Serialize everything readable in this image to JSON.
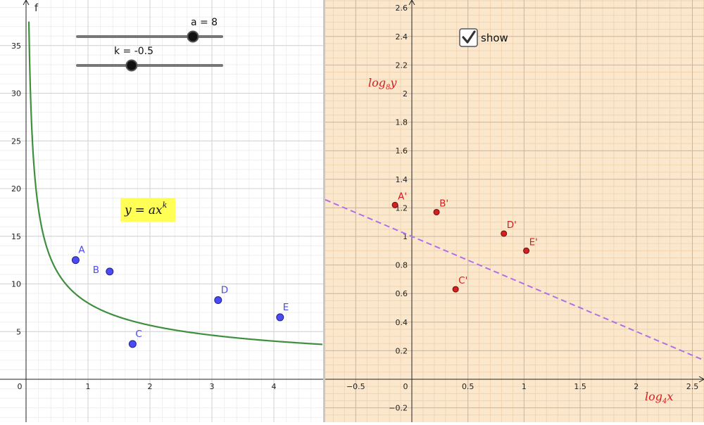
{
  "left_view": {
    "function_label": "f",
    "equation_text": "y = ax^k",
    "equation_parts": {
      "y": "y",
      "eq": "=",
      "a": "a",
      "x": "x",
      "k": "k"
    },
    "sliders": [
      {
        "label": "a = 8",
        "value": 8,
        "min": 0,
        "max": 10
      },
      {
        "label": "k = -0.5",
        "value": -0.5,
        "min": -2,
        "max": 2
      }
    ],
    "curve": {
      "a": 8,
      "k": -0.5
    },
    "x_ticks": [
      "0",
      "1",
      "2",
      "3",
      "4"
    ],
    "y_ticks": [
      "5",
      "10",
      "15",
      "20",
      "25",
      "30",
      "35"
    ],
    "points": [
      {
        "name": "A",
        "x": 0.8,
        "y": 12.5
      },
      {
        "name": "B",
        "x": 1.35,
        "y": 11.3
      },
      {
        "name": "C",
        "x": 1.72,
        "y": 3.7
      },
      {
        "name": "D",
        "x": 3.1,
        "y": 8.3
      },
      {
        "name": "E",
        "x": 4.1,
        "y": 6.5
      }
    ],
    "colors": {
      "curve": "#3f8f3f",
      "point_fill": "#4b4bf5",
      "point_label": "#4b4bf5",
      "highlight": "#ffff55"
    }
  },
  "right_view": {
    "checkbox": {
      "label": "show",
      "checked": true
    },
    "x_axis_label": {
      "base": "log",
      "sub": "4",
      "var": "x"
    },
    "y_axis_label": {
      "base": "log",
      "sub": "8",
      "var": "y"
    },
    "x_ticks": [
      "−0.5",
      "0",
      "0.5",
      "1",
      "1.5",
      "2",
      "2.5"
    ],
    "y_ticks": [
      "−0.2",
      "0.2",
      "0.4",
      "0.6",
      "0.8",
      "1",
      "1.2",
      "1.4",
      "1.6",
      "1.8",
      "2",
      "2.2",
      "2.4",
      "2.6"
    ],
    "points": [
      {
        "name": "A'",
        "x": -0.15,
        "y": 1.22
      },
      {
        "name": "B'",
        "x": 0.22,
        "y": 1.17
      },
      {
        "name": "C'",
        "x": 0.39,
        "y": 0.63
      },
      {
        "name": "D'",
        "x": 0.82,
        "y": 1.02
      },
      {
        "name": "E'",
        "x": 1.02,
        "y": 0.9
      }
    ],
    "dashed_line": {
      "intercept": 1,
      "slope": -0.333
    },
    "colors": {
      "background": "#fbe7cc",
      "point_fill": "#d42020",
      "point_label": "#d42020",
      "line": "#b070e8"
    }
  }
}
